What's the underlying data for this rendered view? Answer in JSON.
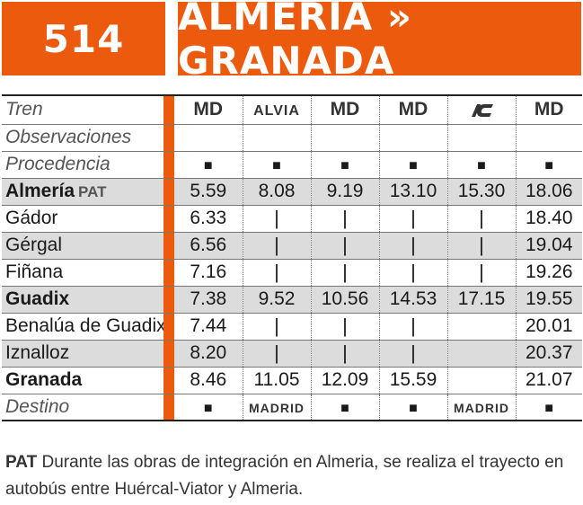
{
  "header": {
    "line_number": "514",
    "route": "ALMERÍA » GRANADA"
  },
  "row_labels": {
    "train": "Tren",
    "observations": "Observaciones",
    "origin": "Procedencia",
    "destination": "Destino"
  },
  "trains": [
    {
      "type": "MD",
      "origin": "■",
      "destination": "■"
    },
    {
      "type": "ALVIA",
      "origin": "■",
      "destination": "MADRID"
    },
    {
      "type": "MD",
      "origin": "■",
      "destination": "■"
    },
    {
      "type": "MD",
      "origin": "■",
      "destination": "■"
    },
    {
      "type_icon": "ic-logo-icon",
      "origin": "■",
      "destination": "MADRID"
    },
    {
      "type": "MD",
      "origin": "■",
      "destination": "■"
    }
  ],
  "stations": [
    {
      "name": "Almería",
      "tag": "PAT",
      "bold": true,
      "times": [
        "5.59",
        "8.08",
        "9.19",
        "13.10",
        "15.30",
        "18.06"
      ]
    },
    {
      "name": "Gádor",
      "bold": false,
      "times": [
        "6.33",
        "|",
        "|",
        "|",
        "|",
        "18.40"
      ]
    },
    {
      "name": "Gérgal",
      "bold": false,
      "times": [
        "6.56",
        "|",
        "|",
        "|",
        "|",
        "19.04"
      ]
    },
    {
      "name": "Fiñana",
      "bold": false,
      "times": [
        "7.16",
        "|",
        "|",
        "|",
        "|",
        "19.26"
      ]
    },
    {
      "name": "Guadix",
      "bold": true,
      "times": [
        "7.38",
        "9.52",
        "10.56",
        "14.53",
        "17.15",
        "19.55"
      ]
    },
    {
      "name": "Benalúa de Guadix",
      "bold": false,
      "times": [
        "7.44",
        "|",
        "|",
        "|",
        "",
        "20.01"
      ]
    },
    {
      "name": "Iznalloz",
      "bold": false,
      "times": [
        "8.20",
        "|",
        "|",
        "|",
        "",
        "20.37"
      ]
    },
    {
      "name": "Granada",
      "bold": true,
      "times": [
        "8.46",
        "11.05",
        "12.09",
        "15.59",
        "",
        "21.07"
      ]
    }
  ],
  "note": {
    "tag": "PAT",
    "text": "Durante las obras de integración en Almeria, se realiza el trayecto en autobús entre Huércal-Viator y Almeria."
  },
  "colors": {
    "accent": "#ec5a0e",
    "shade": "#dcdcdc"
  }
}
